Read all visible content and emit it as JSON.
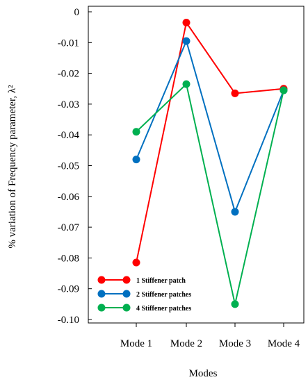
{
  "chart_data": {
    "type": "line",
    "categories": [
      "Mode 1",
      "Mode 2",
      "Mode 3",
      "Mode 4"
    ],
    "series": [
      {
        "name": "1 Stiffener patch",
        "color": "#ff0000",
        "values": [
          -0.0815,
          -0.0035,
          -0.0265,
          -0.025
        ]
      },
      {
        "name": "2 Stiffener patches",
        "color": "#0070c0",
        "values": [
          -0.048,
          -0.0095,
          -0.065,
          -0.0255
        ]
      },
      {
        "name": "4 Stiffener patches",
        "color": "#00b050",
        "values": [
          -0.039,
          -0.0235,
          -0.095,
          -0.0255
        ]
      }
    ],
    "yticks": [
      "0",
      "-0.01",
      "-0.02",
      "-0.03",
      "-0.04",
      "-0.05",
      "-0.06",
      "-0.07",
      "-0.08",
      "-0.09",
      "-0.10"
    ],
    "ylim": [
      -0.1,
      0
    ],
    "xlabel": "Modes",
    "ylabel": "% variation of Frequency parameter, λ²",
    "legend": "bottom-left",
    "grid": false
  }
}
